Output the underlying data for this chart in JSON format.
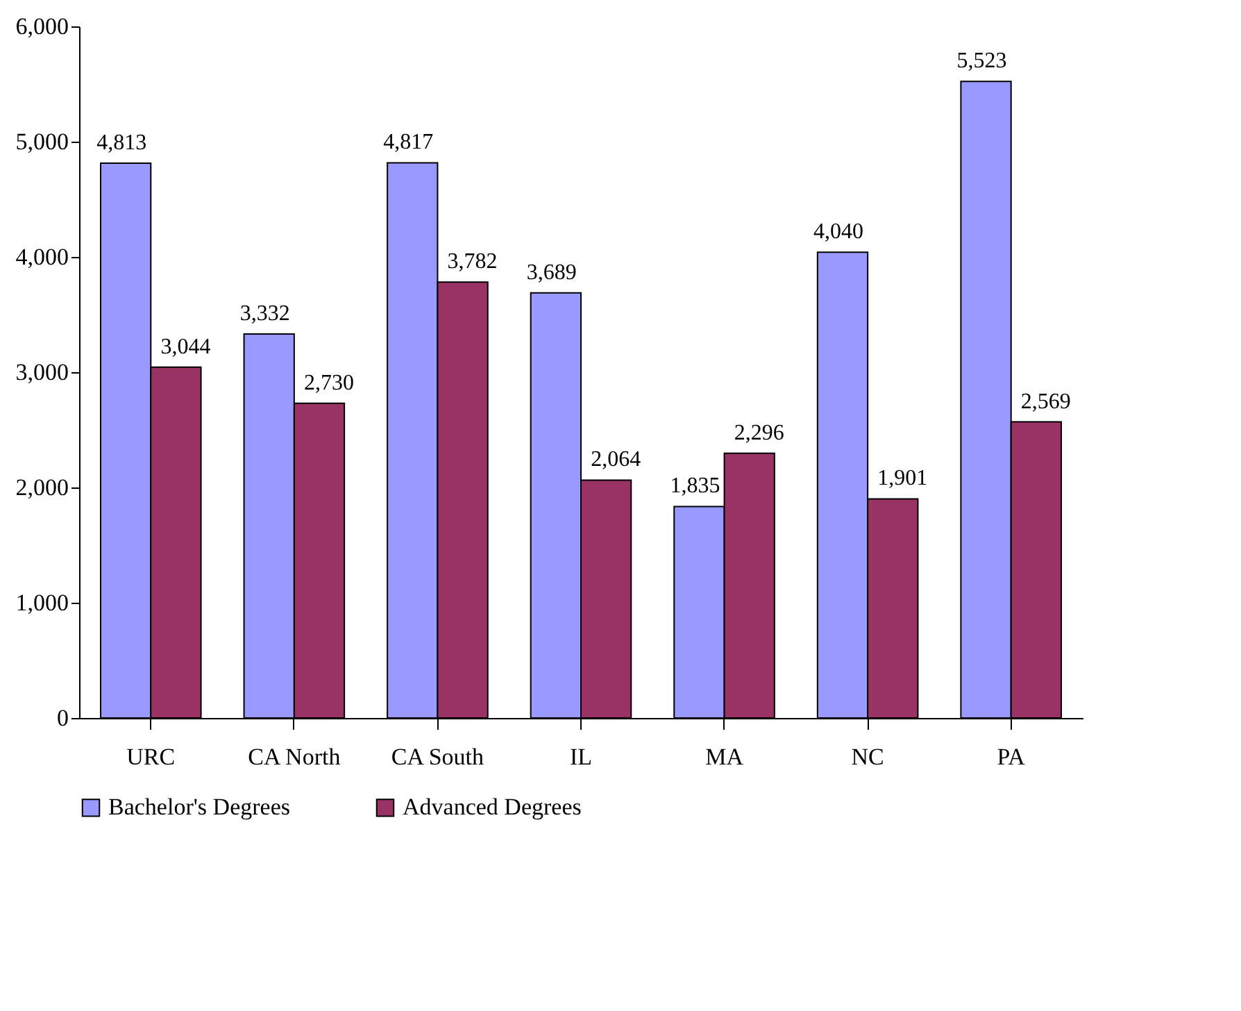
{
  "chart_data": {
    "type": "bar",
    "categories": [
      "URC",
      "CA North",
      "CA South",
      "IL",
      "MA",
      "NC",
      "PA"
    ],
    "series": [
      {
        "name": "Bachelor's Degrees",
        "color": "#9999ff",
        "values": [
          4813,
          3332,
          4817,
          3689,
          1835,
          4040,
          5523
        ],
        "value_labels": [
          "4,813",
          "3,332",
          "4,817",
          "3,689",
          "1,835",
          "4,040",
          "5,523"
        ]
      },
      {
        "name": "Advanced Degrees",
        "color": "#993366",
        "values": [
          3044,
          2730,
          3782,
          2064,
          2296,
          1901,
          2569
        ],
        "value_labels": [
          "3,044",
          "2,730",
          "3,782",
          "2,064",
          "2,296",
          "1,901",
          "2,569"
        ]
      }
    ],
    "ylim": [
      0,
      6000
    ],
    "yticks": [
      0,
      {
        "value": 1000,
        "label": "1,000"
      },
      {
        "value": 2000,
        "label": "2,000"
      },
      {
        "value": 3000,
        "label": "3,000"
      },
      {
        "value": 4000,
        "label": "4,000"
      },
      {
        "value": 5000,
        "label": "5,000"
      },
      {
        "value": 6000,
        "label": "6,000"
      }
    ],
    "grid": false,
    "legend": "bottom"
  }
}
